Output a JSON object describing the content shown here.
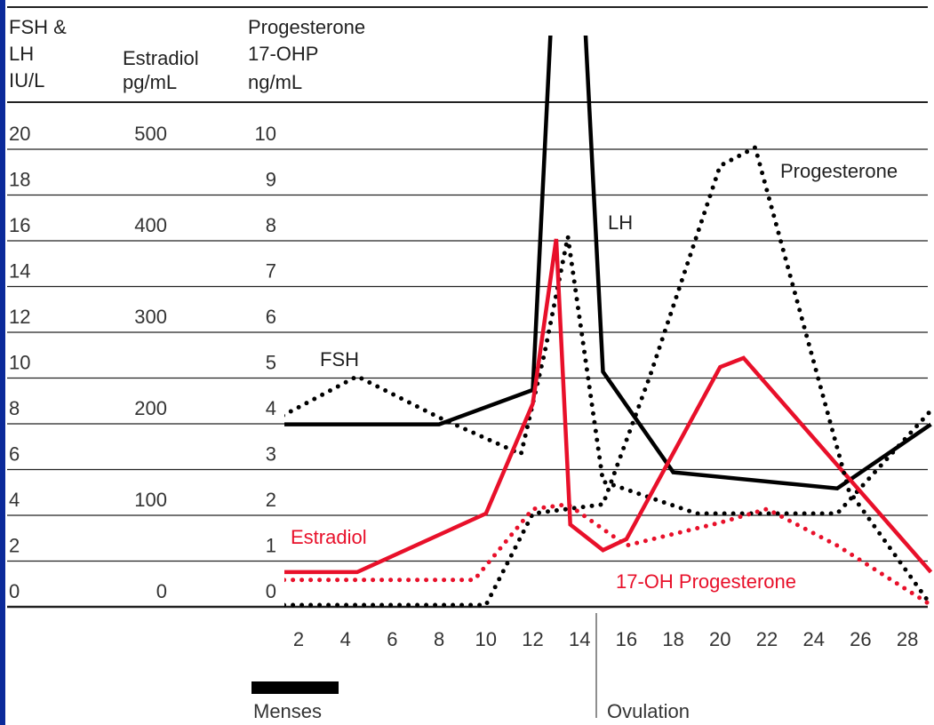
{
  "chart_data": {
    "type": "line",
    "axis_headers": {
      "fsh_lh": [
        "FSH &",
        "LH",
        "IU/L"
      ],
      "estradiol": [
        "Estradiol",
        "pg/mL"
      ],
      "progesterone": [
        "Progesterone",
        "17-OHP",
        "ng/mL"
      ]
    },
    "y_axis_fsh_lh": {
      "label": "FSH & LH IU/L",
      "ticks": [
        0,
        2,
        4,
        6,
        8,
        10,
        12,
        14,
        16,
        18,
        20
      ],
      "ylim": [
        0,
        20
      ]
    },
    "y_axis_estradiol": {
      "label": "Estradiol pg/mL",
      "ticks": [
        "0",
        "",
        "100",
        "",
        "200",
        "",
        "300",
        "",
        "400",
        "",
        "500"
      ],
      "ylim": [
        0,
        500
      ]
    },
    "y_axis_progesterone": {
      "label": "Progesterone 17-OHP ng/mL",
      "ticks": [
        0,
        1,
        2,
        3,
        4,
        5,
        6,
        7,
        8,
        9,
        10
      ],
      "ylim": [
        0,
        10
      ]
    },
    "x_ticks": [
      2,
      4,
      6,
      8,
      10,
      12,
      14,
      16,
      18,
      20,
      22,
      24,
      26,
      28
    ],
    "xlim": [
      1,
      29
    ],
    "grid": true,
    "series": [
      {
        "name": "LH",
        "axis": "fsh_lh",
        "style": "solid",
        "color": "#000000",
        "x": [
          1,
          8,
          12,
          13,
          14,
          15,
          18,
          25,
          29
        ],
        "y": [
          7.9,
          7.9,
          9.4,
          30,
          30,
          10.2,
          5.8,
          5.1,
          7.9
        ]
      },
      {
        "name": "FSH",
        "axis": "fsh_lh",
        "style": "dotted",
        "color": "#000000",
        "x": [
          1,
          4.5,
          8,
          11.5,
          12.5,
          13.5,
          15,
          19,
          25,
          29
        ],
        "y": [
          8.1,
          10,
          8.2,
          6.6,
          11,
          16.1,
          5.4,
          4,
          4,
          8.5
        ]
      },
      {
        "name": "Estradiol",
        "axis": "estradiol",
        "style": "solid",
        "color": "#e8102a",
        "x": [
          1,
          4.5,
          10,
          12,
          13,
          13.6,
          15,
          16,
          20,
          21,
          29
        ],
        "y": [
          36,
          36,
          100,
          220,
          400,
          88,
          60,
          72,
          260,
          270,
          36
        ]
      },
      {
        "name": "Progesterone",
        "axis": "progesterone",
        "style": "dotted",
        "color": "#000000",
        "x": [
          1,
          10,
          12,
          15,
          17,
          20,
          21.5,
          25.5,
          29
        ],
        "y": [
          0,
          0,
          2,
          2.2,
          5,
          9.6,
          10,
          2.5,
          0
        ]
      },
      {
        "name": "17-OH Progesterone",
        "axis": "progesterone",
        "style": "dotted",
        "color": "#e8102a",
        "x": [
          1,
          9.5,
          12,
          13.5,
          16,
          20,
          22,
          25,
          29
        ],
        "y": [
          0.55,
          0.55,
          2.1,
          2.2,
          1.3,
          1.8,
          2.1,
          1.3,
          0
        ]
      }
    ],
    "annotations": {
      "fsh": "FSH",
      "lh": "LH",
      "progesterone": "Progesterone",
      "estradiol": "Estradiol",
      "ohp": "17-OH Progesterone",
      "menses": "Menses",
      "ovulation": "Ovulation"
    }
  }
}
